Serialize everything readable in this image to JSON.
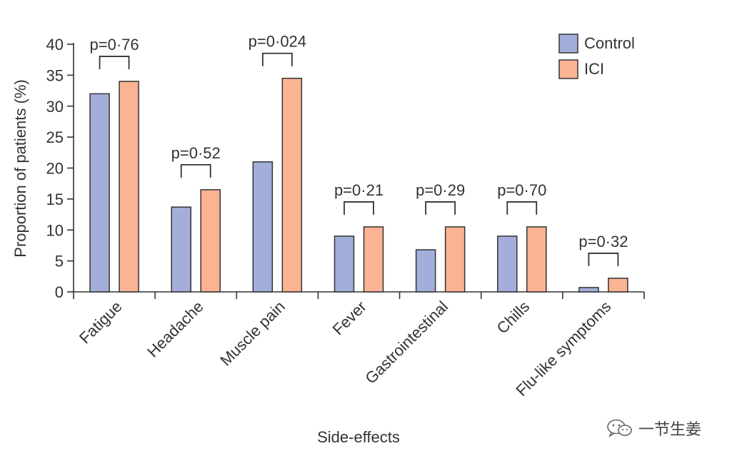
{
  "chart_data": {
    "type": "bar",
    "xlabel": "Side-effects",
    "ylabel": "Proportion of patients (%)",
    "ylim": [
      0,
      40
    ],
    "yticks": [
      0,
      5,
      10,
      15,
      20,
      25,
      30,
      35,
      40
    ],
    "categories": [
      "Fatigue",
      "Headache",
      "Muscle pain",
      "Fever",
      "Gastrointestinal",
      "Chills",
      "Flu-like symptoms"
    ],
    "series": [
      {
        "name": "Control",
        "color": "#a3aedb",
        "values": [
          32.0,
          13.7,
          21.0,
          9.0,
          6.8,
          9.0,
          0.7
        ]
      },
      {
        "name": "ICI",
        "color": "#fbb394",
        "values": [
          34.0,
          16.5,
          34.5,
          10.5,
          10.5,
          10.5,
          2.2
        ]
      }
    ],
    "p_values": [
      "p=0·76",
      "p=0·52",
      "p=0·024",
      "p=0·21",
      "p=0·29",
      "p=0·70",
      "p=0·32"
    ],
    "legend_position": "top-right",
    "grid": false
  },
  "watermark": {
    "text": "一节生姜",
    "icon": "wechat-icon"
  }
}
